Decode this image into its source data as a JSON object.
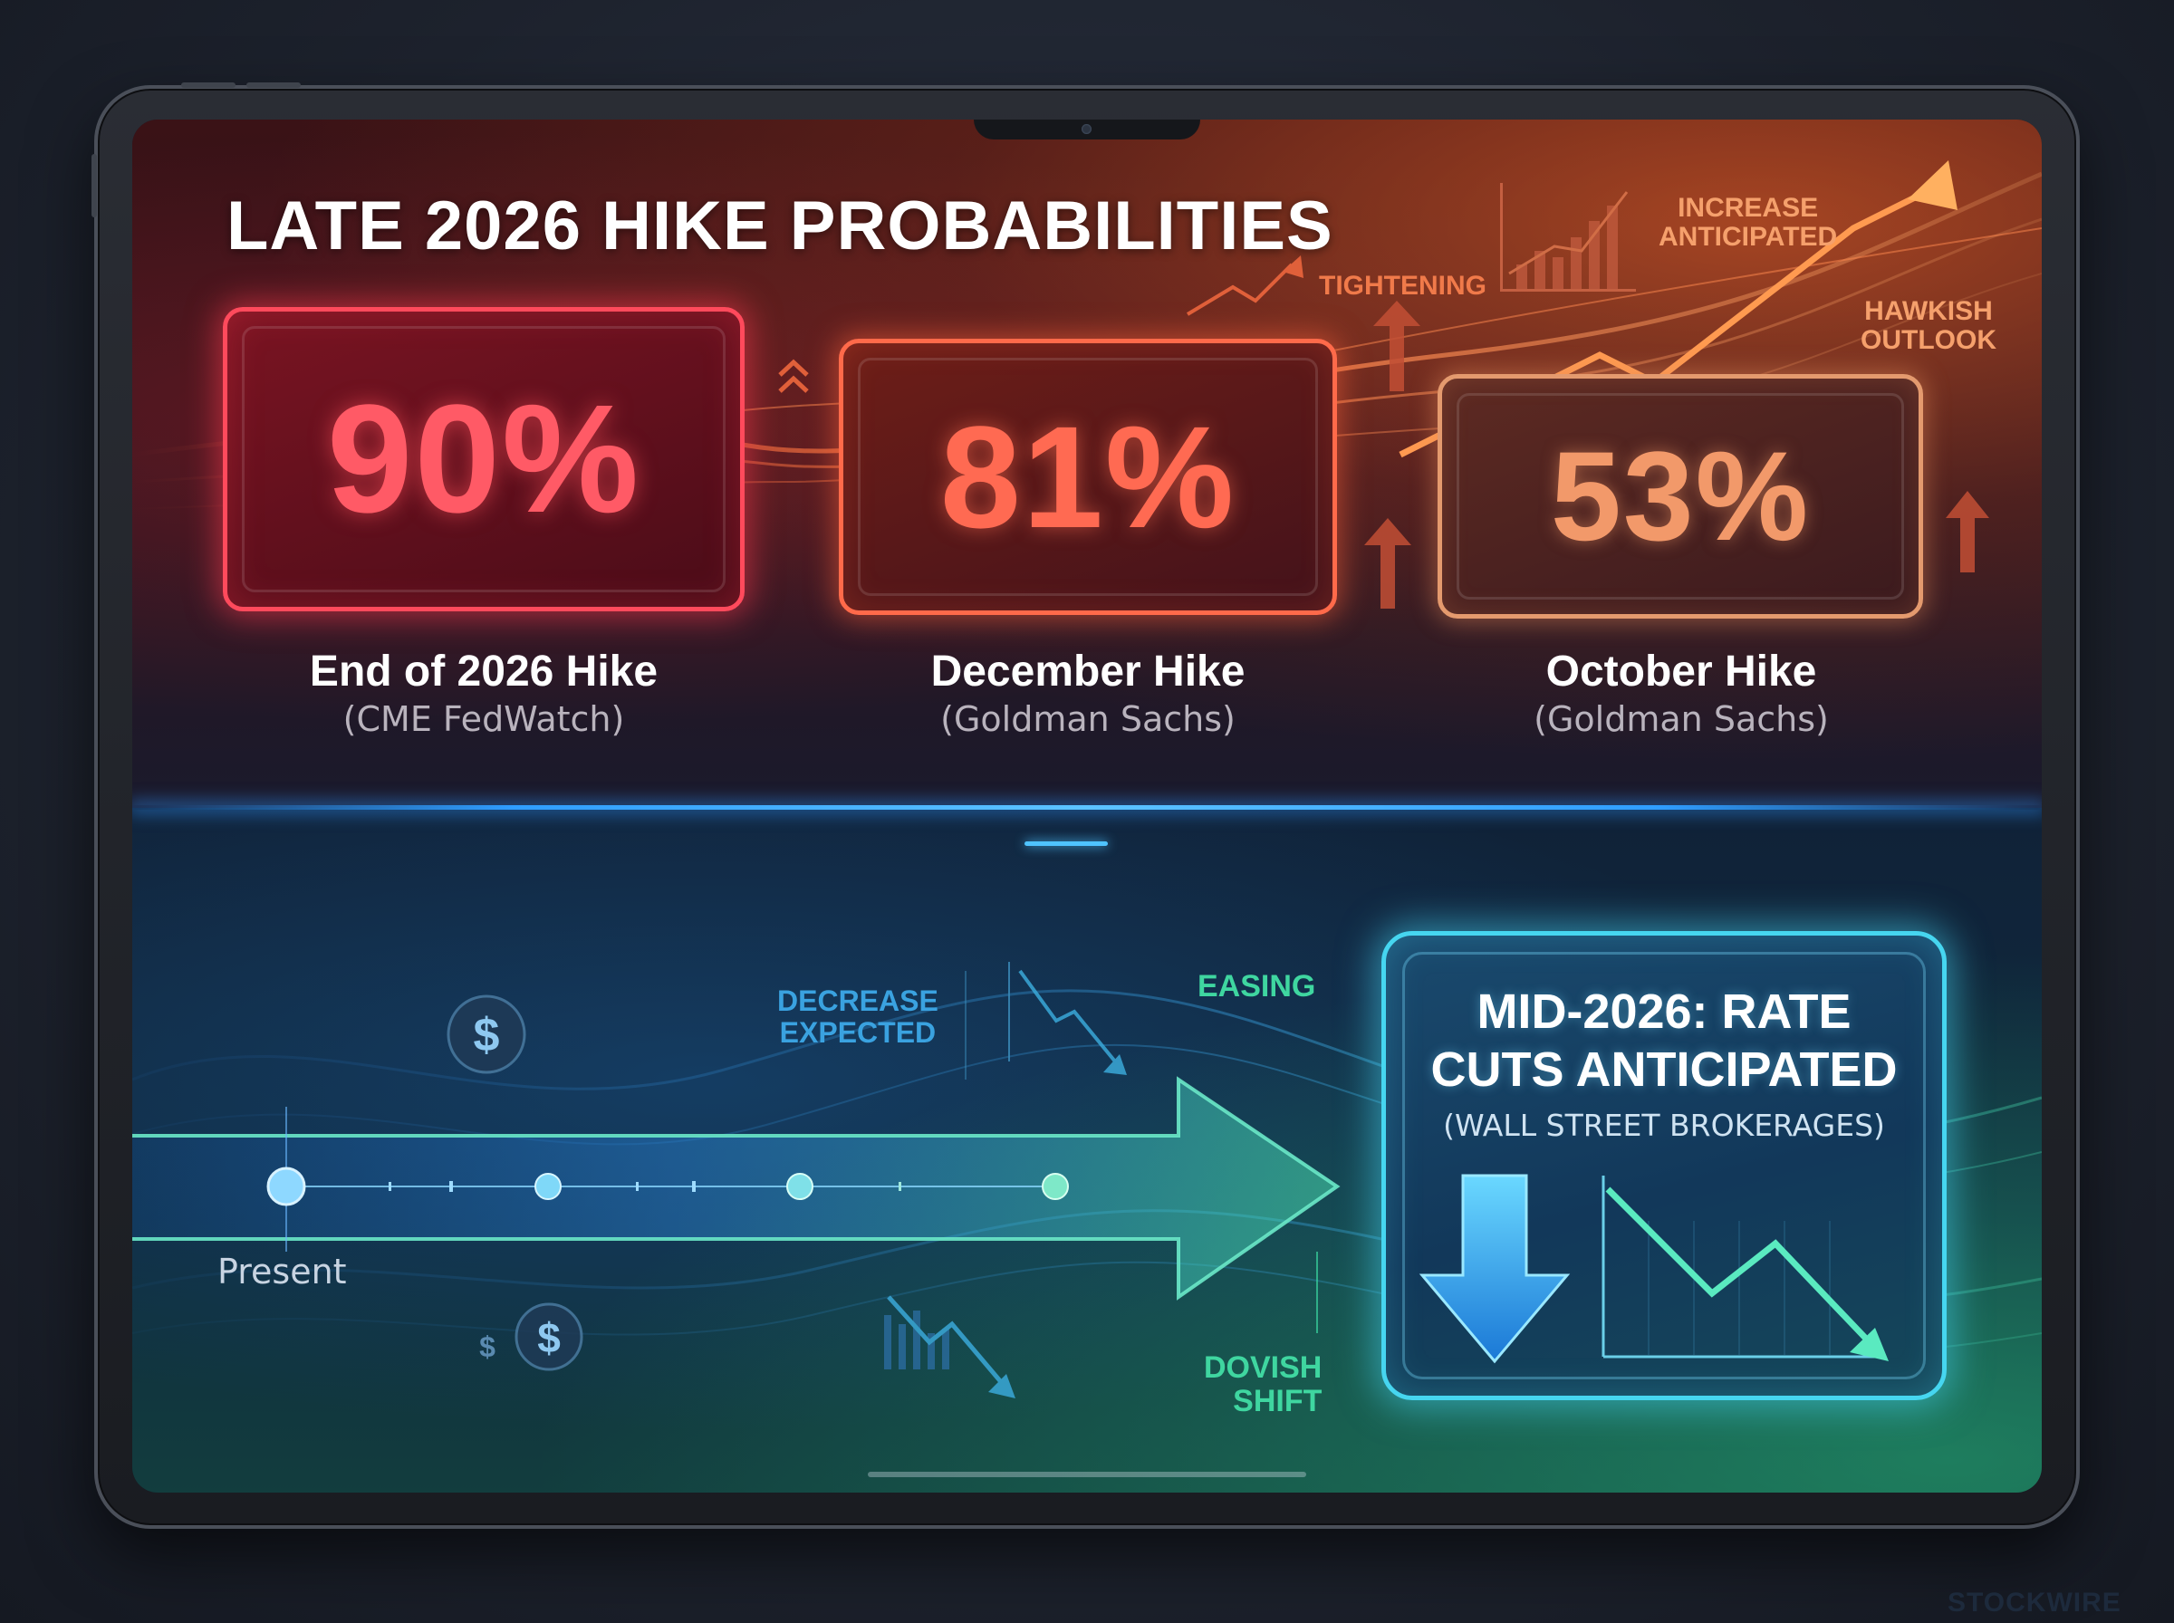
{
  "headline": "LATE 2026 HIKE PROBABILITIES",
  "hike_probabilities": [
    {
      "value": "90%",
      "label": "End of 2026 Hike",
      "source": "(CME FedWatch)"
    },
    {
      "value": "81%",
      "label": "December Hike",
      "source": "(Goldman Sachs)"
    },
    {
      "value": "53%",
      "label": "October Hike",
      "source": "(Goldman Sachs)"
    }
  ],
  "top_tags": {
    "tightening": "TIGHTENING",
    "increase_anticipated": [
      "INCREASE",
      "ANTICIPATED"
    ],
    "hawkish_outlook": [
      "HAWKISH",
      "OUTLOOK"
    ]
  },
  "bottom_tags": {
    "decrease_expected": [
      "DECREASE",
      "EXPECTED"
    ],
    "easing": "EASING",
    "dovish_shift": [
      "DOVISH",
      "SHIFT"
    ]
  },
  "timeline": {
    "start_label": "Present"
  },
  "rate_cut": {
    "title_line1": "MID-2026: RATE",
    "title_line2": "CUTS ANTICIPATED",
    "source": "(WALL STREET BROKERAGES)"
  },
  "watermark": "STOCKWIRE",
  "colors": {
    "hike_strong": "#ff4a5c",
    "hike_medium": "#ff6a4a",
    "hike_mild": "#e49a6e",
    "cut_accent": "#46d6f0",
    "divider": "#2f9dff"
  }
}
